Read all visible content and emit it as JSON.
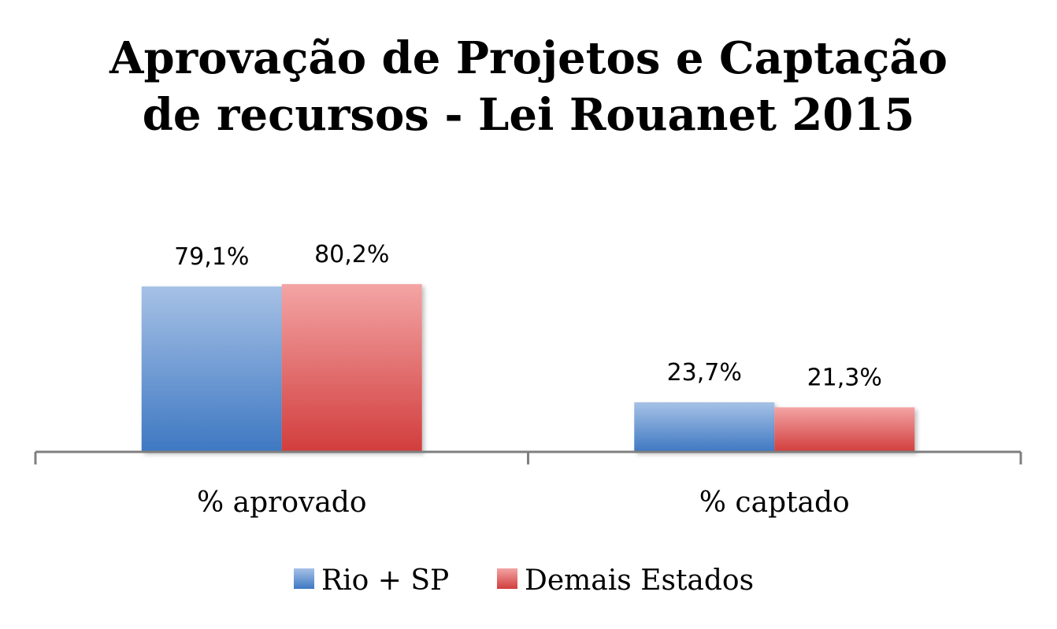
{
  "chart_data": {
    "type": "bar",
    "title": "Aprovação de Projetos e Captação de recursos - Lei Rouanet 2015",
    "title_lines": [
      "Aprovação de Projetos e Captação",
      "de recursos - Lei Rouanet 2015"
    ],
    "categories": [
      "% aprovado",
      "% captado"
    ],
    "series": [
      {
        "name": "Rio + SP",
        "values": [
          79.1,
          23.7
        ],
        "labels": [
          "79,1%",
          "23,7%"
        ],
        "color": "#4F81BD"
      },
      {
        "name": "Demais Estados",
        "values": [
          80.2,
          21.3
        ],
        "labels": [
          "80,2%",
          "21,3%"
        ],
        "color": "#C0504D"
      }
    ],
    "ylim": [
      0,
      100
    ],
    "grid": false,
    "legend": "bottom",
    "xlabel": "",
    "ylabel": ""
  }
}
